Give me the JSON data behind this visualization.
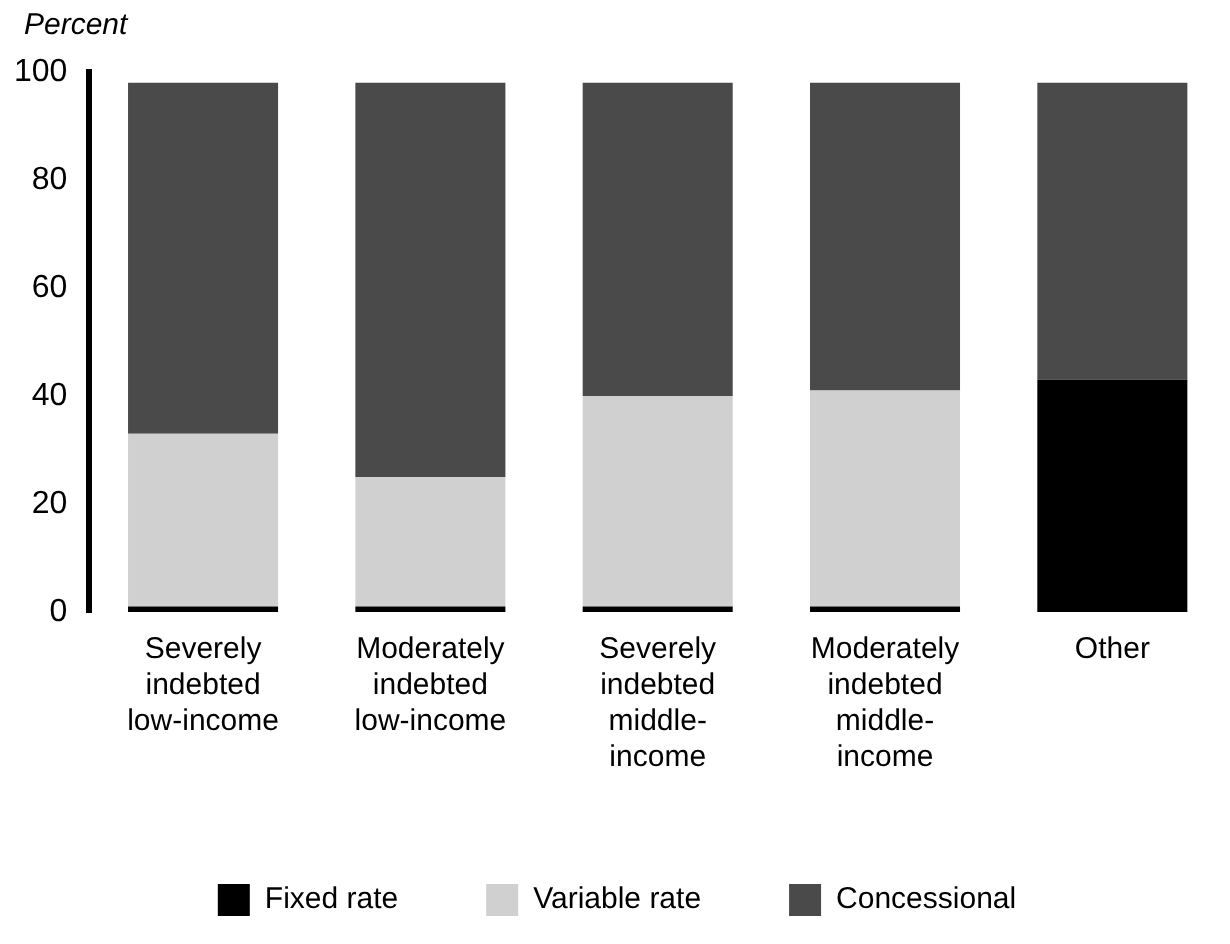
{
  "chart_data": {
    "type": "bar",
    "ylabel": "Percent",
    "stacked": true,
    "categories": [
      "Severely indebted low-income",
      "Moderately indebted low-income",
      "Severely indebted middle-income",
      "Moderately indebted middle-income",
      "Other"
    ],
    "series": [
      {
        "name": "Fixed rate",
        "color": "#000000",
        "values": [
          1,
          1,
          1,
          1,
          43
        ]
      },
      {
        "name": "Variable rate",
        "color": "#d0d0d0",
        "values": [
          32,
          24,
          39,
          40,
          0
        ]
      },
      {
        "name": "Concessional",
        "color": "#4a4a4a",
        "values": [
          65,
          73,
          58,
          57,
          55
        ]
      }
    ],
    "ylim": [
      0,
      100
    ],
    "yticks": [
      0,
      20,
      40,
      60,
      80,
      100
    ],
    "grid": false,
    "legend": "bottom"
  }
}
